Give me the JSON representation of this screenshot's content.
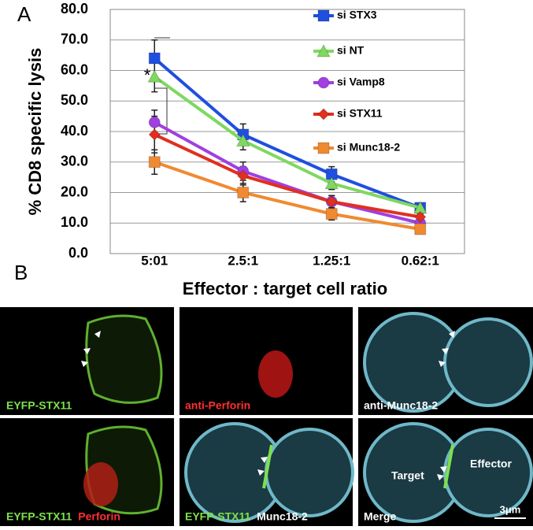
{
  "panel_labels": [
    "A",
    "B"
  ],
  "chart_data": {
    "type": "line",
    "y_label": "% CD8 specific lysis",
    "x_label": "Effector : target cell ratio",
    "categories": [
      "5:01",
      "2.5:1",
      "1.25:1",
      "0.62:1"
    ],
    "ylim": [
      0,
      80
    ],
    "yticks": [
      {
        "value": 0,
        "label": "0.0"
      },
      {
        "value": 10,
        "label": "10.0"
      },
      {
        "value": 20,
        "label": "20.0"
      },
      {
        "value": 30,
        "label": "30.0"
      },
      {
        "value": 40,
        "label": "40.0"
      },
      {
        "value": 50,
        "label": "50.0"
      },
      {
        "value": 60,
        "label": "60.0"
      },
      {
        "value": 70,
        "label": "70.0"
      },
      {
        "value": 80,
        "label": "80.0"
      }
    ],
    "grid": true,
    "annotation": "*",
    "series": [
      {
        "name": "si STX3",
        "color": "#1f4fe0",
        "marker": "square",
        "values": [
          64,
          39,
          26,
          15
        ],
        "errors": [
          6,
          3.5,
          2.5,
          1
        ]
      },
      {
        "name": "si NT",
        "color": "#7fd860",
        "marker": "triangle",
        "values": [
          58,
          37,
          23,
          15
        ],
        "errors": [
          5,
          3,
          2,
          1
        ]
      },
      {
        "name": "si Vamp8",
        "color": "#a040e0",
        "marker": "circle",
        "values": [
          43,
          27,
          17,
          10
        ],
        "errors": [
          4,
          3,
          2,
          1.5
        ]
      },
      {
        "name": "si STX11",
        "color": "#e03020",
        "marker": "diamond",
        "values": [
          39,
          25.5,
          17,
          12
        ],
        "errors": [
          6,
          3,
          2,
          1
        ]
      },
      {
        "name": "si Munc18-2",
        "color": "#f08a30",
        "marker": "square",
        "values": [
          30,
          20,
          13,
          8
        ],
        "errors": [
          4,
          3,
          2,
          1
        ]
      }
    ]
  },
  "micrographs": [
    {
      "labels": [
        {
          "text": "EYFP-STX11",
          "color": "#7fe04a"
        }
      ]
    },
    {
      "labels": [
        {
          "text": "anti-Perforin",
          "color": "#ff3030"
        }
      ]
    },
    {
      "labels": [
        {
          "text": "anti-Munc18-2",
          "color": "#ffffff"
        }
      ]
    },
    {
      "labels": [
        {
          "text": "EYFP-STX11",
          "color": "#7fe04a"
        },
        {
          "text": "Perforin",
          "color": "#ff3030"
        }
      ]
    },
    {
      "labels": [
        {
          "text": "EYFP-STX11",
          "color": "#7fe04a"
        },
        {
          "text": "Munc18-2",
          "color": "#ffffff"
        }
      ]
    },
    {
      "labels": [
        {
          "text": "Merge",
          "color": "#ffffff"
        }
      ]
    }
  ],
  "merge_annotations": {
    "target": "Target",
    "effector": "Effector",
    "scale": "3μm"
  }
}
